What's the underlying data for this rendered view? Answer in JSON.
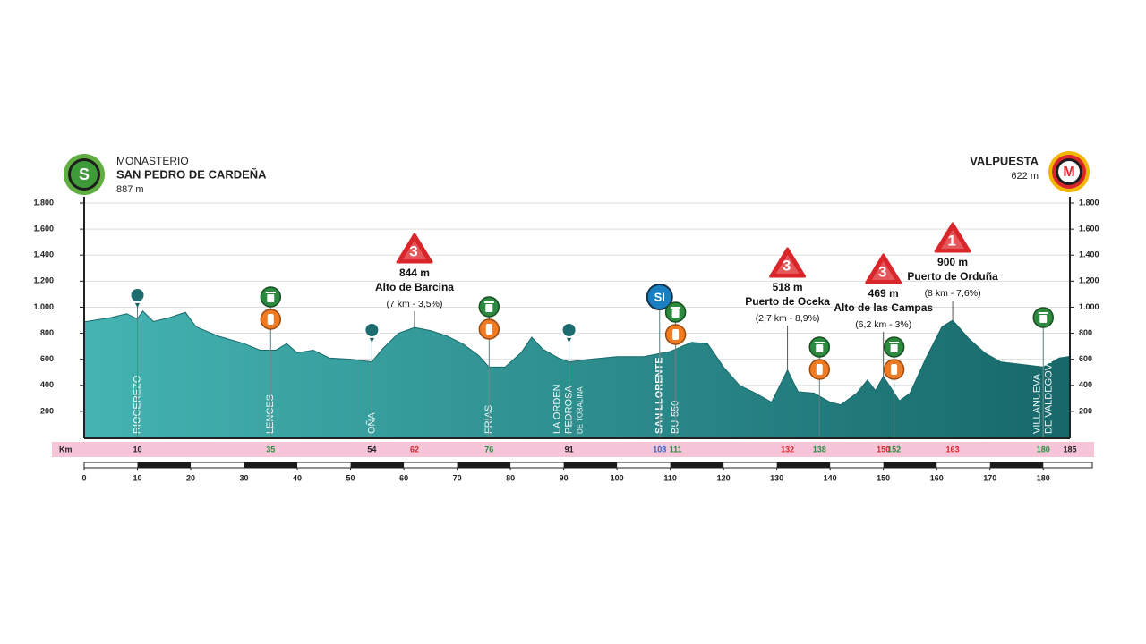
{
  "chart_data": {
    "type": "area",
    "start": {
      "badge": "S",
      "lines": [
        "MONASTERIO",
        "SAN PEDRO DE CARDEÑA"
      ],
      "altitude": {
        "value": 887,
        "label": "887 m"
      }
    },
    "finish": {
      "badge": "M",
      "name": "VALPUESTA",
      "altitude": {
        "value": 622,
        "label": "622 m"
      }
    },
    "x": [
      0,
      5,
      8,
      10,
      11,
      13,
      16,
      19,
      21,
      25,
      30,
      33,
      36,
      38,
      40,
      43,
      46,
      50,
      54,
      56,
      59,
      62,
      65,
      68,
      71,
      74,
      76,
      79,
      82,
      84,
      86,
      89,
      91,
      95,
      100,
      105,
      110,
      114,
      117,
      120,
      123,
      126,
      129,
      132,
      134,
      137,
      140,
      142,
      145,
      147,
      148.5,
      150,
      153,
      155,
      158,
      161,
      163,
      166,
      169,
      172,
      176,
      180,
      183,
      185
    ],
    "values": [
      887,
      920,
      950,
      910,
      970,
      890,
      920,
      960,
      850,
      780,
      720,
      670,
      670,
      720,
      650,
      670,
      610,
      600,
      580,
      680,
      800,
      844,
      820,
      780,
      720,
      630,
      540,
      540,
      650,
      770,
      680,
      610,
      580,
      600,
      620,
      620,
      660,
      730,
      720,
      540,
      400,
      340,
      270,
      518,
      350,
      340,
      270,
      250,
      340,
      440,
      360,
      469,
      280,
      340,
      610,
      850,
      900,
      760,
      650,
      580,
      560,
      540,
      610,
      622
    ],
    "colors": [
      "#44b4b2",
      "#17686a"
    ],
    "xlim": [
      0,
      185
    ],
    "ylim": [
      0,
      1800
    ],
    "yticks": [
      200,
      400,
      600,
      800,
      {
        "value": 1000,
        "label": "1.000"
      },
      {
        "value": 1200,
        "label": "1.200"
      },
      {
        "value": 1400,
        "label": "1.400"
      },
      {
        "value": 1600,
        "label": "1.600"
      },
      {
        "value": 1800,
        "label": "1.800"
      }
    ],
    "xticks": [
      0,
      10,
      20,
      30,
      40,
      50,
      60,
      70,
      80,
      90,
      100,
      110,
      120,
      130,
      140,
      150,
      160,
      170,
      180
    ],
    "grid": true,
    "x_unit_label": "Km",
    "places": [
      {
        "km": 10,
        "lines": [
          "RIOCEREZO"
        ]
      },
      {
        "km": 35,
        "lines": [
          "LENCES"
        ]
      },
      {
        "km": 54,
        "lines": [
          "OÑA"
        ]
      },
      {
        "km": 76,
        "lines": [
          "FRÍAS"
        ]
      },
      {
        "km": 91,
        "lines": [
          "LA ORDEN",
          "PEDROSA",
          "DE TOBALINA"
        ]
      },
      {
        "km": 108,
        "lines": [
          "SAN LLORENTE"
        ],
        "emphasis": true
      },
      {
        "km": 111,
        "lines": [
          "BU-550"
        ]
      },
      {
        "km": 180,
        "lines": [
          "VILLANUEVA",
          "DE VALDEGOVIA"
        ]
      }
    ],
    "km_marks": [
      {
        "km": 10,
        "kind": "town"
      },
      {
        "km": 35,
        "kind": "feed"
      },
      {
        "km": 54,
        "kind": "town"
      },
      {
        "km": 62,
        "kind": "climb"
      },
      {
        "km": 76,
        "kind": "feed"
      },
      {
        "km": 91,
        "kind": "town"
      },
      {
        "km": 108,
        "kind": "sprint"
      },
      {
        "km": 111,
        "kind": "feed"
      },
      {
        "km": 132,
        "kind": "climb"
      },
      {
        "km": 138,
        "kind": "feed"
      },
      {
        "km": 150,
        "kind": "climb"
      },
      {
        "km": 152,
        "kind": "feed"
      },
      {
        "km": 163,
        "kind": "climb"
      },
      {
        "km": 180,
        "kind": "feed"
      },
      {
        "km": 185,
        "kind": "town"
      }
    ],
    "kind_colors": {
      "town": "#222222",
      "feed": "#2b8a3e",
      "climb": "#d9262b",
      "sprint": "#3b5fb5"
    },
    "climbs": [
      {
        "km": 62,
        "category": "3",
        "altitude": {
          "value": 844,
          "label": "844 m"
        },
        "name": "Alto de Barcina",
        "detail": "(7 km - 3,5%)"
      },
      {
        "km": 132,
        "category": "3",
        "altitude": {
          "value": 518,
          "label": "518 m"
        },
        "name": "Puerto de Oceka",
        "detail": "(2,7 km - 8,9%)"
      },
      {
        "km": 150,
        "category": "3",
        "altitude": {
          "value": 469,
          "label": "469 m"
        },
        "name": "Alto de las Campas",
        "detail": "(6,2 km - 3%)"
      },
      {
        "km": 163,
        "category": "1",
        "altitude": {
          "value": 900,
          "label": "900 m"
        },
        "name": "Puerto de Orduña",
        "detail": "(8 km - 7,6%)"
      }
    ],
    "pins": [
      10,
      54,
      91
    ],
    "sprint": {
      "km": 108,
      "label": "SI"
    },
    "feed_zones": [
      {
        "km": 35,
        "bottle": true
      },
      {
        "km": 76,
        "bottle": true
      },
      {
        "km": 111,
        "bottle": true
      },
      {
        "km": 138,
        "bottle": true
      },
      {
        "km": 152,
        "bottle": true
      },
      {
        "km": 180,
        "bottle": false
      }
    ]
  }
}
